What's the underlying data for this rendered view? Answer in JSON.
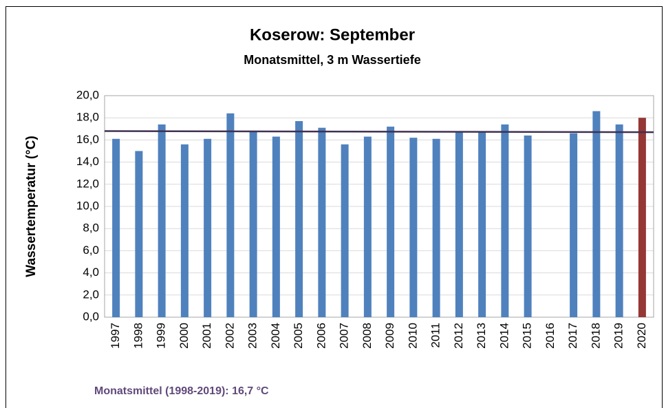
{
  "chart_data": {
    "type": "bar",
    "title": "Koserow: September",
    "subtitle": "Monatsmittel, 3 m Wassertiefe",
    "y_label": "Wassertemperatur (°C)",
    "annotation": "Monatsmittel (1998-2019): 16,7 °C",
    "categories": [
      "1997",
      "1998",
      "1999",
      "2000",
      "2001",
      "2002",
      "2003",
      "2004",
      "2005",
      "2006",
      "2007",
      "2008",
      "2009",
      "2010",
      "2011",
      "2012",
      "2013",
      "2014",
      "2015",
      "2016",
      "2017",
      "2018",
      "2019",
      "2020"
    ],
    "values": [
      16.1,
      15.0,
      17.4,
      15.6,
      16.1,
      18.4,
      16.8,
      16.3,
      17.7,
      17.1,
      15.6,
      16.3,
      17.2,
      16.2,
      16.1,
      16.8,
      16.8,
      17.4,
      16.4,
      null,
      16.6,
      18.6,
      17.4,
      18.0
    ],
    "colors": [
      "#4f81bd",
      "#4f81bd",
      "#4f81bd",
      "#4f81bd",
      "#4f81bd",
      "#4f81bd",
      "#4f81bd",
      "#4f81bd",
      "#4f81bd",
      "#4f81bd",
      "#4f81bd",
      "#4f81bd",
      "#4f81bd",
      "#4f81bd",
      "#4f81bd",
      "#4f81bd",
      "#4f81bd",
      "#4f81bd",
      "#4f81bd",
      "#4f81bd",
      "#4f81bd",
      "#4f81bd",
      "#4f81bd",
      "#953735"
    ],
    "reference_line": {
      "start": 16.8,
      "end": 16.7,
      "color": "#403152"
    },
    "ylim": [
      0,
      20
    ],
    "yticks": [
      {
        "value": 0,
        "label": "0,0"
      },
      {
        "value": 2,
        "label": "2,0"
      },
      {
        "value": 4,
        "label": "4,0"
      },
      {
        "value": 6,
        "label": "6,0"
      },
      {
        "value": 8,
        "label": "8,0"
      },
      {
        "value": 10,
        "label": "10,0"
      },
      {
        "value": 12,
        "label": "12,0"
      },
      {
        "value": 14,
        "label": "14,0"
      },
      {
        "value": 16,
        "label": "16,0"
      },
      {
        "value": 18,
        "label": "18,0"
      },
      {
        "value": 20,
        "label": "20,0"
      }
    ],
    "grid": true
  }
}
